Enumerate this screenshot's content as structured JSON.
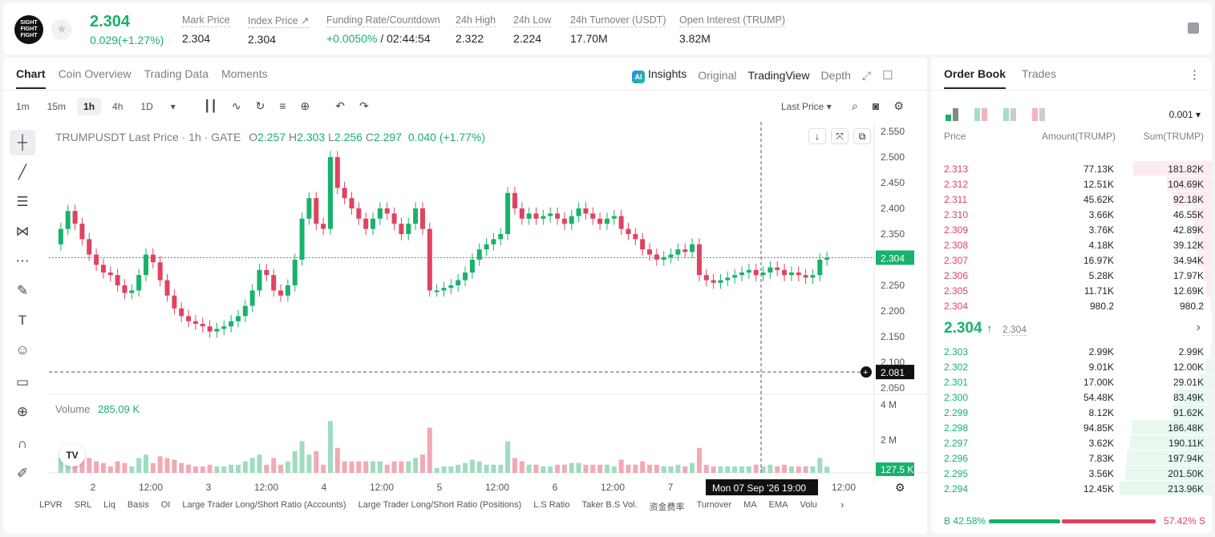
{
  "ticker": {
    "logo_text": "SIGHT FIGHT FIGHT",
    "last_price": "2.304",
    "change": "0.029(+1.27%)"
  },
  "stats": [
    {
      "label": "Mark Price",
      "value": "2.304"
    },
    {
      "label": "Index Price ↗",
      "value": "2.304"
    },
    {
      "label": "Funding Rate/Countdown",
      "value_green": "+0.0050%",
      "value": " / 02:44:54"
    },
    {
      "label": "24h High",
      "value": "2.322"
    },
    {
      "label": "24h Low",
      "value": "2.224"
    },
    {
      "label": "24h Turnover (USDT)",
      "value": "17.70M"
    },
    {
      "label": "Open Interest (TRUMP)",
      "value": "3.82M"
    }
  ],
  "chart_tabs": [
    "Chart",
    "Coin Overview",
    "Trading Data",
    "Moments"
  ],
  "view_tabs": {
    "insights": "Insights",
    "original": "Original",
    "tradingview": "TradingView",
    "depth": "Depth"
  },
  "timeframes": [
    "1m",
    "15m",
    "1h",
    "4h",
    "1D"
  ],
  "last_price_select": "Last Price",
  "legend": {
    "symbol": "TRUMPUSDT Last Price · 1h · GATE",
    "o": "2.257",
    "h": "2.303",
    "l": "2.256",
    "c": "2.297",
    "chg": "0.040 (+1.77%)"
  },
  "volume_label": "Volume",
  "volume_value": "285.09 K",
  "y_ticks": [
    "2.550",
    "2.500",
    "2.450",
    "2.400",
    "2.350",
    "2.300",
    "2.250",
    "2.200",
    "2.150",
    "2.100",
    "2.050"
  ],
  "vol_ticks": [
    "4 M",
    "2 M"
  ],
  "price_tag": "2.304",
  "cross_tag": "2.081",
  "vol_tag": "127.5 K",
  "x_ticks": [
    "2",
    "12:00",
    "3",
    "12:00",
    "4",
    "12:00",
    "5",
    "12:00",
    "6",
    "12:00",
    "7",
    "12:00"
  ],
  "cross_time": "Mon 07 Sep '26   19:00",
  "indicators": [
    "LPVR",
    "SRL",
    "Liq",
    "Basis",
    "OI",
    "Large Trader Long/Short Ratio (Accounts)",
    "Large Trader Long/Short Ratio (Positions)",
    "L.S Ratio",
    "Taker B.S Vol.",
    "资金费率",
    "Turnover",
    "MA",
    "EMA",
    "Volu"
  ],
  "orderbook": {
    "tabs": [
      "Order Book",
      "Trades"
    ],
    "precision": "0.001",
    "headers": {
      "price": "Price",
      "amount": "Amount(TRUMP)",
      "sum": "Sum(TRUMP)"
    },
    "asks": [
      {
        "price": "2.313",
        "amount": "77.13K",
        "sum": "181.82K",
        "depth": 0.85
      },
      {
        "price": "2.312",
        "amount": "12.51K",
        "sum": "104.69K",
        "depth": 0.49
      },
      {
        "price": "2.311",
        "amount": "45.62K",
        "sum": "92.18K",
        "depth": 0.43
      },
      {
        "price": "2.310",
        "amount": "3.66K",
        "sum": "46.55K",
        "depth": 0.22
      },
      {
        "price": "2.309",
        "amount": "3.76K",
        "sum": "42.89K",
        "depth": 0.2
      },
      {
        "price": "2.308",
        "amount": "4.18K",
        "sum": "39.12K",
        "depth": 0.18
      },
      {
        "price": "2.307",
        "amount": "16.97K",
        "sum": "34.94K",
        "depth": 0.16
      },
      {
        "price": "2.306",
        "amount": "5.28K",
        "sum": "17.97K",
        "depth": 0.08
      },
      {
        "price": "2.305",
        "amount": "11.71K",
        "sum": "12.69K",
        "depth": 0.06
      },
      {
        "price": "2.304",
        "amount": "980.2",
        "sum": "980.2",
        "depth": 0.01
      }
    ],
    "mid_price": "2.304",
    "mid_arrow": "↑",
    "mark": "2.304",
    "bids": [
      {
        "price": "2.303",
        "amount": "2.99K",
        "sum": "2.99K",
        "depth": 0.01
      },
      {
        "price": "2.302",
        "amount": "9.01K",
        "sum": "12.00K",
        "depth": 0.06
      },
      {
        "price": "2.301",
        "amount": "17.00K",
        "sum": "29.01K",
        "depth": 0.14
      },
      {
        "price": "2.300",
        "amount": "54.48K",
        "sum": "83.49K",
        "depth": 0.39
      },
      {
        "price": "2.299",
        "amount": "8.12K",
        "sum": "91.62K",
        "depth": 0.43
      },
      {
        "price": "2.298",
        "amount": "94.85K",
        "sum": "186.48K",
        "depth": 0.87
      },
      {
        "price": "2.297",
        "amount": "3.62K",
        "sum": "190.11K",
        "depth": 0.89
      },
      {
        "price": "2.296",
        "amount": "7.83K",
        "sum": "197.94K",
        "depth": 0.92
      },
      {
        "price": "2.295",
        "amount": "3.56K",
        "sum": "201.50K",
        "depth": 0.94
      },
      {
        "price": "2.294",
        "amount": "12.45K",
        "sum": "213.96K",
        "depth": 1.0
      }
    ],
    "buy_ratio": "B 42.58%",
    "sell_ratio": "57.42% S",
    "buy_frac": 0.4258
  },
  "colors": {
    "up": "#18b26a",
    "down": "#e0435f",
    "up_bar": "#e8f8ef",
    "down_bar": "#fdecef"
  }
}
